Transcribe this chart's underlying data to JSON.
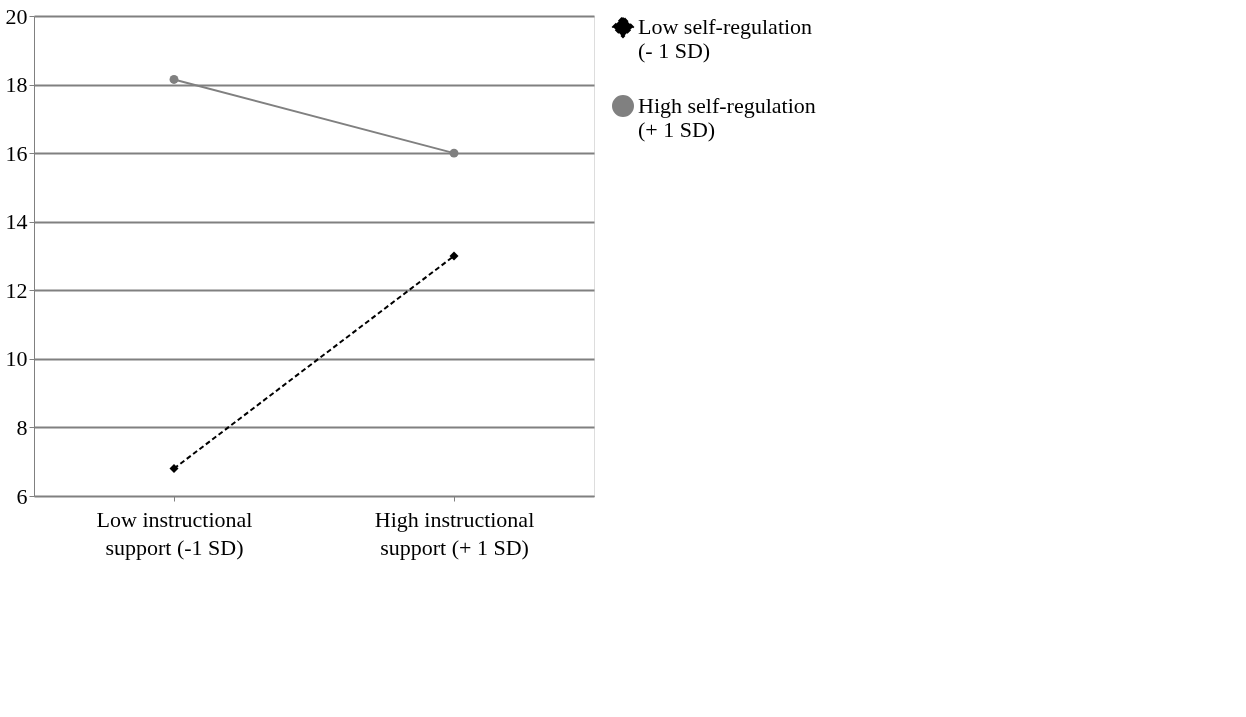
{
  "chart_data": {
    "type": "line",
    "categories": [
      "Low instructional support (-1 SD)",
      "High instructional support (+ 1 SD)"
    ],
    "series": [
      {
        "name": "Low self-regulation (- 1 SD)",
        "color": "#000000",
        "values": [
          6.8,
          13.0
        ],
        "marker": "diamond",
        "line_style": "dashed"
      },
      {
        "name": "High self-regulation (+ 1 SD)",
        "color": "#808080",
        "values": [
          18.15,
          16.0
        ],
        "marker": "circle",
        "line_style": "solid"
      }
    ],
    "ylim": [
      6,
      20
    ],
    "yticks": [
      6,
      8,
      10,
      12,
      14,
      16,
      18,
      20
    ],
    "grid": "y",
    "legend": "right"
  }
}
